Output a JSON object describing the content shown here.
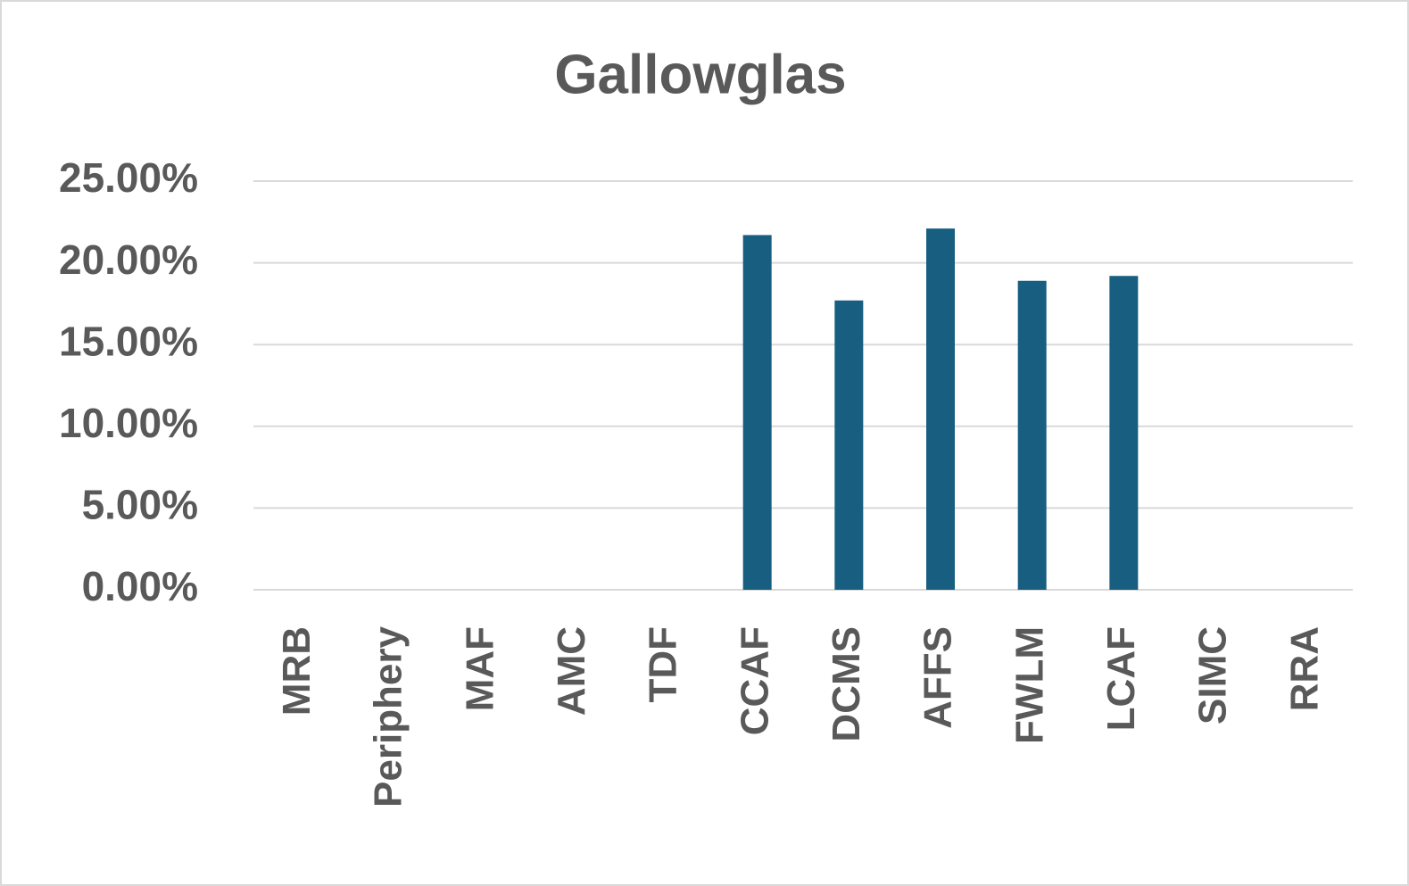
{
  "chart_data": {
    "type": "bar",
    "title": "Gallowglas",
    "categories": [
      "MRB",
      "Periphery",
      "MAF",
      "AMC",
      "TDF",
      "CCAF",
      "DCMS",
      "AFFS",
      "FWLM",
      "LCAF",
      "SIMC",
      "RRA"
    ],
    "values": [
      0,
      0,
      0,
      0,
      0,
      21.7,
      17.7,
      22.1,
      18.9,
      19.2,
      0,
      0
    ],
    "color": "#175e81",
    "ylim": [
      0,
      25
    ],
    "yticks": [
      {
        "value": 0,
        "label": "0.00%"
      },
      {
        "value": 5,
        "label": "5.00%"
      },
      {
        "value": 10,
        "label": "10.00%"
      },
      {
        "value": 15,
        "label": "15.00%"
      },
      {
        "value": 20,
        "label": "20.00%"
      },
      {
        "value": 25,
        "label": "25.00%"
      }
    ],
    "grid": true
  }
}
